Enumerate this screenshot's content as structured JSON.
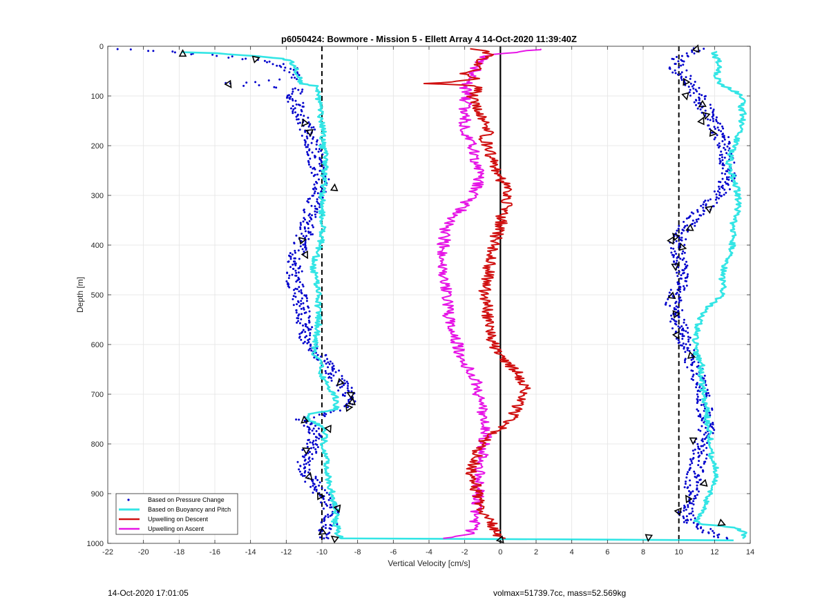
{
  "chart_data": {
    "type": "line",
    "title": "p6050424: Bowmore - Mission 5 - Ellett Array 4 14-Oct-2020 11:39:40Z",
    "xlabel": "Vertical Velocity [cm/s]",
    "ylabel": "Depth [m]",
    "xlim": [
      -22,
      14
    ],
    "ylim": [
      0,
      1000
    ],
    "y_reversed": true,
    "xticks": [
      -22,
      -20,
      -18,
      -16,
      -14,
      -12,
      -10,
      -8,
      -6,
      -4,
      -2,
      0,
      2,
      4,
      6,
      8,
      10,
      12,
      14
    ],
    "yticks": [
      0,
      100,
      200,
      300,
      400,
      500,
      600,
      700,
      800,
      900,
      1000
    ],
    "grid": true,
    "legend_position": "bottom-left",
    "reference_lines": [
      {
        "x": -10,
        "style": "dashed",
        "color": "#000000"
      },
      {
        "x": 10,
        "style": "dashed",
        "color": "#000000"
      },
      {
        "x": 0,
        "style": "solid",
        "color": "#000000"
      }
    ],
    "series": [
      {
        "name": "Based on Pressure Change",
        "style": "scatter",
        "color": "#0000cc",
        "profiles": [
          {
            "depth": [
              5,
              15,
              25,
              35,
              45,
              55,
              65,
              75,
              85,
              95,
              110,
              125,
              140,
              155,
              170,
              185,
              200,
              220,
              240,
              260,
              280,
              300,
              320,
              340,
              360,
              380,
              400,
              420,
              440,
              460,
              480,
              500,
              520,
              540,
              560,
              580,
              600,
              620,
              640,
              660,
              680,
              700,
              720,
              740,
              750,
              760,
              780,
              800,
              820,
              840,
              860,
              880,
              900,
              920,
              940,
              960,
              980,
              990
            ],
            "x": [
              -21,
              -17.5,
              -14,
              -12.5,
              -11.8,
              -11.6,
              -11.5,
              -15.2,
              -11.5,
              -11.6,
              -11.5,
              -11.3,
              -11.2,
              -11.0,
              -10.8,
              -10.6,
              -10.5,
              -10.4,
              -10.3,
              -10.1,
              -10.0,
              -10.2,
              -10.5,
              -10.7,
              -10.8,
              -11.0,
              -11.2,
              -11.4,
              -11.5,
              -11.6,
              -11.5,
              -11.3,
              -11.2,
              -11.1,
              -11.0,
              -10.9,
              -10.6,
              -10.2,
              -9.7,
              -9.3,
              -8.9,
              -8.5,
              -8.6,
              -9.8,
              -11.0,
              -10.8,
              -10.3,
              -10.5,
              -10.8,
              -11.0,
              -10.8,
              -10.5,
              -10.0,
              -9.6,
              -9.5,
              -9.6,
              -10.0,
              -9.5
            ]
          },
          {
            "depth": [
              5,
              15,
              25,
              35,
              45,
              55,
              65,
              75,
              85,
              95,
              110,
              125,
              140,
              155,
              170,
              185,
              200,
              220,
              240,
              260,
              280,
              300,
              320,
              340,
              360,
              380,
              400,
              420,
              440,
              460,
              480,
              500,
              520,
              540,
              560,
              580,
              600,
              620,
              640,
              660,
              680,
              700,
              720,
              740,
              760,
              780,
              800,
              820,
              840,
              860,
              880,
              900,
              920,
              940,
              960,
              980,
              990
            ],
            "x": [
              11,
              10.5,
              10.0,
              9.8,
              9.9,
              10.2,
              10.4,
              10.6,
              10.8,
              11.0,
              11.2,
              11.5,
              11.8,
              12.0,
              12.2,
              12.4,
              12.5,
              12.6,
              12.7,
              12.8,
              12.6,
              12.2,
              11.6,
              11.0,
              10.5,
              10.0,
              9.9,
              9.9,
              10.0,
              10.2,
              10.1,
              9.8,
              9.7,
              9.8,
              10.0,
              10.2,
              10.4,
              10.6,
              10.8,
              11.0,
              11.2,
              11.3,
              11.4,
              11.5,
              11.6,
              11.5,
              11.3,
              11.2,
              11.0,
              10.9,
              10.8,
              10.7,
              10.5,
              10.3,
              10.8,
              11.8,
              12.5
            ]
          }
        ]
      },
      {
        "name": "Based on Buoyancy and Pitch",
        "style": "line",
        "color": "#33e5e5",
        "profiles": [
          {
            "depth": [
              12,
              14,
              20,
              25,
              30,
              40,
              50,
              60,
              75,
              80,
              90,
              100,
              120,
              140,
              160,
              180,
              200,
              220,
              240,
              260,
              280,
              300,
              320,
              340,
              360,
              380,
              400,
              420,
              440,
              460,
              480,
              500,
              520,
              540,
              560,
              580,
              600,
              620,
              640,
              660,
              680,
              690,
              700,
              710,
              720,
              730,
              740,
              750,
              760,
              770,
              780,
              800,
              820,
              840,
              860,
              880,
              900,
              920,
              940,
              960,
              970,
              980,
              985,
              990,
              992,
              994
            ],
            "x": [
              -17.8,
              -16.0,
              -13.5,
              -12.3,
              -11.7,
              -11.6,
              -11.4,
              -11.3,
              -11.2,
              -10.3,
              -10.2,
              -10.2,
              -10.1,
              -10.1,
              -10.0,
              -9.9,
              -10.0,
              -9.8,
              -9.8,
              -9.9,
              -9.9,
              -10.0,
              -10.0,
              -10.0,
              -9.9,
              -10.0,
              -10.1,
              -10.3,
              -10.5,
              -10.4,
              -10.3,
              -10.2,
              -10.2,
              -10.2,
              -10.2,
              -10.3,
              -10.4,
              -10.4,
              -10.1,
              -10.0,
              -9.7,
              -9.6,
              -9.3,
              -9.2,
              -9.2,
              -9.2,
              -10.6,
              -10.8,
              -10.3,
              -9.8,
              -9.8,
              -9.9,
              -9.8,
              -9.7,
              -9.7,
              -9.6,
              -9.4,
              -9.3,
              -9.2,
              -9.3,
              -9.1,
              -9.1,
              -9.0,
              -9.0,
              3.0,
              13.0
            ]
          },
          {
            "depth": [
              990,
              985,
              980,
              975,
              970,
              965,
              962,
              960,
              955,
              950,
              940,
              930,
              920,
              910,
              900,
              880,
              860,
              840,
              820,
              800,
              780,
              760,
              740,
              720,
              700,
              680,
              660,
              640,
              620,
              600,
              580,
              560,
              540,
              520,
              500,
              480,
              460,
              440,
              420,
              400,
              380,
              360,
              340,
              320,
              300,
              280,
              260,
              240,
              220,
              200,
              180,
              160,
              140,
              120,
              110,
              100,
              90,
              80,
              70,
              60,
              50,
              40,
              30,
              20,
              10
            ],
            "x": [
              13.5,
              13.6,
              13.7,
              13.6,
              13.2,
              12.5,
              11.5,
              11.3,
              11.0,
              11.1,
              11.2,
              11.4,
              11.5,
              11.6,
              11.7,
              11.9,
              12.1,
              12.0,
              11.8,
              11.8,
              11.7,
              11.6,
              11.6,
              11.5,
              11.4,
              11.3,
              11.2,
              11.3,
              11.0,
              10.9,
              11.0,
              11.1,
              11.3,
              11.8,
              12.5,
              12.5,
              12.4,
              12.6,
              12.8,
              13.0,
              13.1,
              13.0,
              13.2,
              13.4,
              13.3,
              13.2,
              13.0,
              12.8,
              12.9,
              13.1,
              13.3,
              13.5,
              13.6,
              13.5,
              13.6,
              13.5,
              13.1,
              12.5,
              12.2,
              12.1,
              12.2,
              12.3,
              12.2,
              12.0,
              12.0
            ]
          }
        ]
      },
      {
        "name": "Upwelling on Descent",
        "style": "line",
        "color": "#d01010",
        "profiles": [
          {
            "depth": [
              5,
              15,
              25,
              35,
              45,
              55,
              65,
              72,
              75,
              78,
              85,
              95,
              105,
              115,
              125,
              140,
              155,
              170,
              185,
              200,
              220,
              240,
              260,
              280,
              300,
              320,
              340,
              360,
              380,
              400,
              420,
              440,
              460,
              480,
              500,
              520,
              540,
              560,
              580,
              600,
              620,
              640,
              660,
              680,
              700,
              720,
              740,
              760,
              780,
              800,
              820,
              840,
              860,
              880,
              900,
              920,
              940,
              960,
              980,
              990
            ],
            "x": [
              -1.5,
              -0.6,
              -1.0,
              -1.2,
              -0.8,
              -2.0,
              -1.4,
              -2.5,
              -4.0,
              -1.8,
              -1.2,
              -1.5,
              -1.6,
              -1.5,
              -1.4,
              -1.1,
              -0.8,
              -0.6,
              -0.9,
              -0.7,
              -0.5,
              -0.3,
              -0.2,
              0.3,
              0.5,
              0.3,
              0.1,
              0.0,
              -0.2,
              -0.4,
              -0.5,
              -0.6,
              -0.7,
              -0.8,
              -0.9,
              -0.8,
              -0.7,
              -0.6,
              -0.5,
              -0.4,
              -0.1,
              0.5,
              1.0,
              1.4,
              1.3,
              1.0,
              0.8,
              0.4,
              -0.5,
              -1.0,
              -1.3,
              -1.5,
              -1.6,
              -1.4,
              -1.3,
              -1.1,
              -0.9,
              -0.5,
              -0.2,
              0.0
            ]
          }
        ]
      },
      {
        "name": "Upwelling on Ascent",
        "style": "line",
        "color": "#e614e6",
        "profiles": [
          {
            "depth": [
              990,
              980,
              960,
              940,
              920,
              900,
              880,
              860,
              840,
              820,
              800,
              780,
              760,
              740,
              720,
              700,
              680,
              660,
              640,
              620,
              600,
              580,
              560,
              540,
              520,
              500,
              480,
              460,
              440,
              420,
              400,
              380,
              360,
              340,
              320,
              300,
              280,
              260,
              240,
              220,
              200,
              180,
              160,
              140,
              120,
              100,
              80,
              60,
              40,
              20,
              5
            ],
            "x": [
              -3.0,
              -1.7,
              -1.5,
              -1.4,
              -1.3,
              -1.2,
              -1.3,
              -1.2,
              -1.1,
              -1.0,
              -0.9,
              -0.8,
              -0.9,
              -1.0,
              -1.1,
              -1.2,
              -1.3,
              -1.6,
              -2.0,
              -2.3,
              -2.4,
              -2.6,
              -2.8,
              -2.9,
              -3.0,
              -3.0,
              -3.1,
              -3.2,
              -3.3,
              -3.3,
              -3.2,
              -3.1,
              -3.0,
              -2.5,
              -2.0,
              -1.6,
              -1.3,
              -1.2,
              -1.3,
              -1.5,
              -1.6,
              -1.8,
              -2.0,
              -1.9,
              -2.0,
              -1.9,
              -2.0,
              -1.5,
              -1.3,
              -1.0,
              2.5
            ]
          }
        ]
      }
    ],
    "markers": {
      "open_triangles": [
        {
          "x": -17.8,
          "y": 15
        },
        {
          "x": -13.7,
          "y": 25
        },
        {
          "x": -15.2,
          "y": 77
        },
        {
          "x": -11.0,
          "y": 155
        },
        {
          "x": -10.7,
          "y": 172
        },
        {
          "x": -9.3,
          "y": 285
        },
        {
          "x": -11.1,
          "y": 390
        },
        {
          "x": -10.9,
          "y": 420
        },
        {
          "x": -9.0,
          "y": 677
        },
        {
          "x": -8.4,
          "y": 700
        },
        {
          "x": -8.3,
          "y": 715
        },
        {
          "x": -8.5,
          "y": 727
        },
        {
          "x": -9.6,
          "y": 770
        },
        {
          "x": -11.0,
          "y": 753
        },
        {
          "x": -10.9,
          "y": 812
        },
        {
          "x": -10.7,
          "y": 865
        },
        {
          "x": -10.1,
          "y": 905
        },
        {
          "x": -9.1,
          "y": 930
        },
        {
          "x": -10.0,
          "y": 978
        },
        {
          "x": -9.3,
          "y": 990
        },
        {
          "x": 11.0,
          "y": 5
        },
        {
          "x": 10.4,
          "y": 72
        },
        {
          "x": 10.4,
          "y": 100
        },
        {
          "x": 11.3,
          "y": 118
        },
        {
          "x": 11.5,
          "y": 138
        },
        {
          "x": 11.3,
          "y": 150
        },
        {
          "x": 11.9,
          "y": 175
        },
        {
          "x": 11.7,
          "y": 328
        },
        {
          "x": 10.6,
          "y": 367
        },
        {
          "x": 9.8,
          "y": 382
        },
        {
          "x": 9.6,
          "y": 390
        },
        {
          "x": 10.2,
          "y": 405
        },
        {
          "x": 9.8,
          "y": 443
        },
        {
          "x": 9.6,
          "y": 503
        },
        {
          "x": 9.8,
          "y": 538
        },
        {
          "x": 9.9,
          "y": 580
        },
        {
          "x": 10.7,
          "y": 623
        },
        {
          "x": 10.8,
          "y": 793
        },
        {
          "x": 11.4,
          "y": 880
        },
        {
          "x": 10.5,
          "y": 910
        },
        {
          "x": 10.0,
          "y": 935
        },
        {
          "x": 12.4,
          "y": 960
        },
        {
          "x": 8.3,
          "y": 988
        },
        {
          "x": 0.0,
          "y": 993
        }
      ]
    }
  },
  "footer": {
    "left": "14-Oct-2020 17:01:05",
    "right": "volmax=51739.7cc, mass=52.569kg"
  }
}
